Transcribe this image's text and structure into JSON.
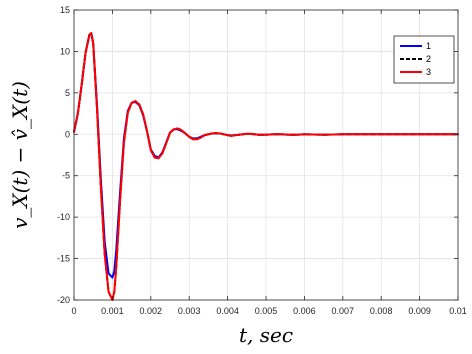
{
  "chart_data": {
    "type": "line",
    "xlabel": "t,  sec",
    "ylabel": "v_X(t) − v̂_X(t)",
    "xlim": [
      0,
      0.01
    ],
    "ylim": [
      -20,
      15
    ],
    "xticks": [
      0,
      0.001,
      0.002,
      0.003,
      0.004,
      0.005,
      0.006,
      0.007,
      0.008,
      0.009,
      0.01
    ],
    "xtick_labels": [
      "0",
      "0.001",
      "0.002",
      "0.003",
      "0.004",
      "0.005",
      "0.006",
      "0.007",
      "0.008",
      "0.009",
      "0.01"
    ],
    "yticks": [
      -20,
      -15,
      -10,
      -5,
      0,
      5,
      10,
      15
    ],
    "ytick_labels": [
      "-20",
      "-15",
      "-10",
      "-5",
      "0",
      "5",
      "10",
      "15"
    ],
    "grid": true,
    "legend_position": "top-right",
    "series": [
      {
        "name": "1",
        "color": "#0000ff",
        "style": "solid",
        "x": [
          0,
          0.0001,
          0.0002,
          0.0003,
          0.0004,
          0.00045,
          0.0005,
          0.0006,
          0.0007,
          0.0008,
          0.0009,
          0.001,
          0.00105,
          0.0011,
          0.0012,
          0.0013,
          0.0014,
          0.0015,
          0.0016,
          0.0017,
          0.0018,
          0.0019,
          0.002,
          0.0021,
          0.0022,
          0.0023,
          0.0024,
          0.0025,
          0.0026,
          0.0027,
          0.0028,
          0.0029,
          0.003,
          0.0031,
          0.0032,
          0.0033,
          0.0034,
          0.0035,
          0.0036,
          0.0037,
          0.0038,
          0.0039,
          0.004,
          0.0041,
          0.0042,
          0.0043,
          0.0044,
          0.0045,
          0.0046,
          0.0047,
          0.0048,
          0.005,
          0.0052,
          0.0054,
          0.0056,
          0.0058,
          0.006,
          0.0065,
          0.007,
          0.0075,
          0.008,
          0.0085,
          0.009,
          0.0095,
          0.01
        ],
        "y": [
          0.3,
          2.5,
          6.0,
          9.8,
          12.0,
          12.2,
          11.0,
          3.5,
          -5.5,
          -13.0,
          -16.8,
          -17.3,
          -16.5,
          -14.0,
          -7.0,
          -0.5,
          2.8,
          3.8,
          3.9,
          3.5,
          2.3,
          0.4,
          -1.8,
          -2.6,
          -2.8,
          -2.2,
          -1.0,
          0.2,
          0.6,
          0.6,
          0.4,
          0.1,
          -0.3,
          -0.5,
          -0.5,
          -0.3,
          -0.1,
          0.0,
          0.1,
          0.1,
          0.1,
          0.0,
          -0.1,
          -0.15,
          -0.1,
          -0.05,
          0.0,
          0.05,
          0.05,
          0.0,
          -0.05,
          -0.05,
          0.0,
          0.0,
          -0.05,
          -0.05,
          0.0,
          -0.05,
          0.0,
          0.0,
          0.0,
          0.0,
          0.0,
          0.0,
          0.0
        ]
      },
      {
        "name": "2",
        "color": "#000000",
        "style": "dashed",
        "x": [
          0,
          0.0001,
          0.0002,
          0.0003,
          0.0004,
          0.00045,
          0.0005,
          0.0006,
          0.0007,
          0.0008,
          0.0009,
          0.001,
          0.00105,
          0.0011,
          0.0012,
          0.0013,
          0.0014,
          0.0015,
          0.0016,
          0.0017,
          0.0018,
          0.0019,
          0.002,
          0.0021,
          0.0022,
          0.0023,
          0.0024,
          0.0025,
          0.0026,
          0.0027,
          0.0028,
          0.0029,
          0.003,
          0.0031,
          0.0032,
          0.0033,
          0.0034,
          0.0035,
          0.0036,
          0.0037,
          0.0038,
          0.0039,
          0.004,
          0.0041,
          0.0042,
          0.0043,
          0.0044,
          0.0045,
          0.0046,
          0.0047,
          0.0048,
          0.005,
          0.0052,
          0.0054,
          0.0056,
          0.0058,
          0.006,
          0.0065,
          0.007,
          0.0075,
          0.008,
          0.0085,
          0.009,
          0.0095,
          0.01
        ],
        "y": [
          0.3,
          2.5,
          6.0,
          9.8,
          12.0,
          12.2,
          11.0,
          3.0,
          -6.5,
          -14.5,
          -19.0,
          -20.0,
          -19.0,
          -16.0,
          -8.0,
          -1.0,
          2.6,
          3.8,
          4.0,
          3.6,
          2.4,
          0.4,
          -1.9,
          -2.8,
          -2.9,
          -2.3,
          -1.1,
          0.2,
          0.6,
          0.7,
          0.5,
          0.1,
          -0.3,
          -0.6,
          -0.6,
          -0.4,
          -0.1,
          0.0,
          0.1,
          0.15,
          0.1,
          0.0,
          -0.1,
          -0.2,
          -0.1,
          -0.05,
          0.0,
          0.05,
          0.05,
          0.0,
          -0.05,
          -0.05,
          0.0,
          0.0,
          -0.05,
          -0.05,
          0.0,
          -0.05,
          0.0,
          0.0,
          0.0,
          0.0,
          0.0,
          0.0,
          0.0
        ]
      },
      {
        "name": "3",
        "color": "#ff0000",
        "style": "solid",
        "x": [
          0,
          0.0001,
          0.0002,
          0.0003,
          0.0004,
          0.00045,
          0.0005,
          0.0006,
          0.0007,
          0.0008,
          0.0009,
          0.001,
          0.00105,
          0.0011,
          0.0012,
          0.0013,
          0.0014,
          0.0015,
          0.0016,
          0.0017,
          0.0018,
          0.0019,
          0.002,
          0.0021,
          0.0022,
          0.0023,
          0.0024,
          0.0025,
          0.0026,
          0.0027,
          0.0028,
          0.0029,
          0.003,
          0.0031,
          0.0032,
          0.0033,
          0.0034,
          0.0035,
          0.0036,
          0.0037,
          0.0038,
          0.0039,
          0.004,
          0.0041,
          0.0042,
          0.0043,
          0.0044,
          0.0045,
          0.0046,
          0.0047,
          0.0048,
          0.005,
          0.0052,
          0.0054,
          0.0056,
          0.0058,
          0.006,
          0.0065,
          0.007,
          0.0075,
          0.008,
          0.0085,
          0.009,
          0.0095,
          0.01
        ],
        "y": [
          0.3,
          2.5,
          6.0,
          9.8,
          12.0,
          12.2,
          11.0,
          3.0,
          -6.5,
          -14.5,
          -19.0,
          -20.0,
          -19.0,
          -16.0,
          -8.0,
          -1.0,
          2.6,
          3.8,
          4.0,
          3.6,
          2.4,
          0.4,
          -1.9,
          -2.8,
          -2.9,
          -2.3,
          -1.1,
          0.2,
          0.6,
          0.7,
          0.5,
          0.1,
          -0.3,
          -0.6,
          -0.6,
          -0.4,
          -0.1,
          0.0,
          0.1,
          0.15,
          0.1,
          0.0,
          -0.1,
          -0.2,
          -0.1,
          -0.05,
          0.0,
          0.05,
          0.05,
          0.0,
          -0.05,
          -0.05,
          0.0,
          0.0,
          -0.05,
          -0.05,
          0.0,
          -0.05,
          0.0,
          0.0,
          0.0,
          0.0,
          0.0,
          0.0,
          0.0
        ]
      }
    ]
  }
}
